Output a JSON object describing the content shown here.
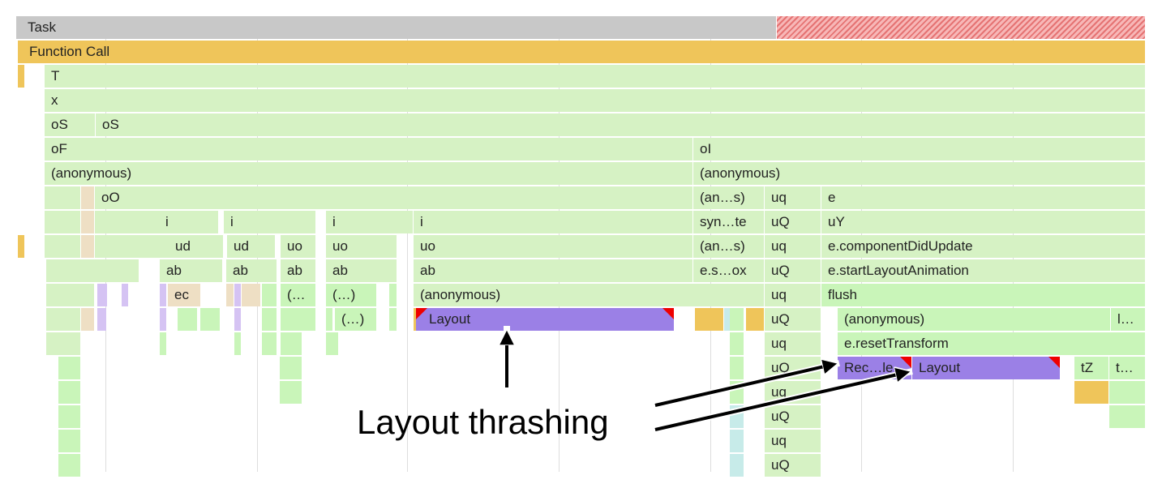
{
  "frames": {
    "task": "Task",
    "function_call": "Function Call",
    "t": "T",
    "x": "x",
    "os": "oS",
    "of": "oF",
    "oi": "oI",
    "anonymous": "(anonymous)",
    "oo": "oO",
    "i": "i",
    "ud": "ud",
    "uo": "uo",
    "ab": "ab",
    "ec": "ec",
    "paren_trunc": "(…",
    "paren_ellipsis": "(…)",
    "layout": "Layout",
    "an_s": "(an…s)",
    "syn_te": "syn…te",
    "e_s_ox": "e.s…ox",
    "uq": "uq",
    "uQ": "uQ",
    "e": "e",
    "uY": "uY",
    "component_did_update": "e.componentDidUpdate",
    "start_layout_animation": "e.startLayoutAnimation",
    "flush": "flush",
    "l_trunc": "l…",
    "reset_transform": "e.resetTransform",
    "rec_le": "Rec…le",
    "tZ": "tZ",
    "t_trunc": "t…"
  },
  "colors": {
    "js": "#d6f2c4",
    "layout": "#9b80e6",
    "task": "#c8c8c8",
    "function_call": "#efc55a",
    "long_task": "#e57373"
  },
  "annotation": {
    "label": "Layout thrashing"
  }
}
